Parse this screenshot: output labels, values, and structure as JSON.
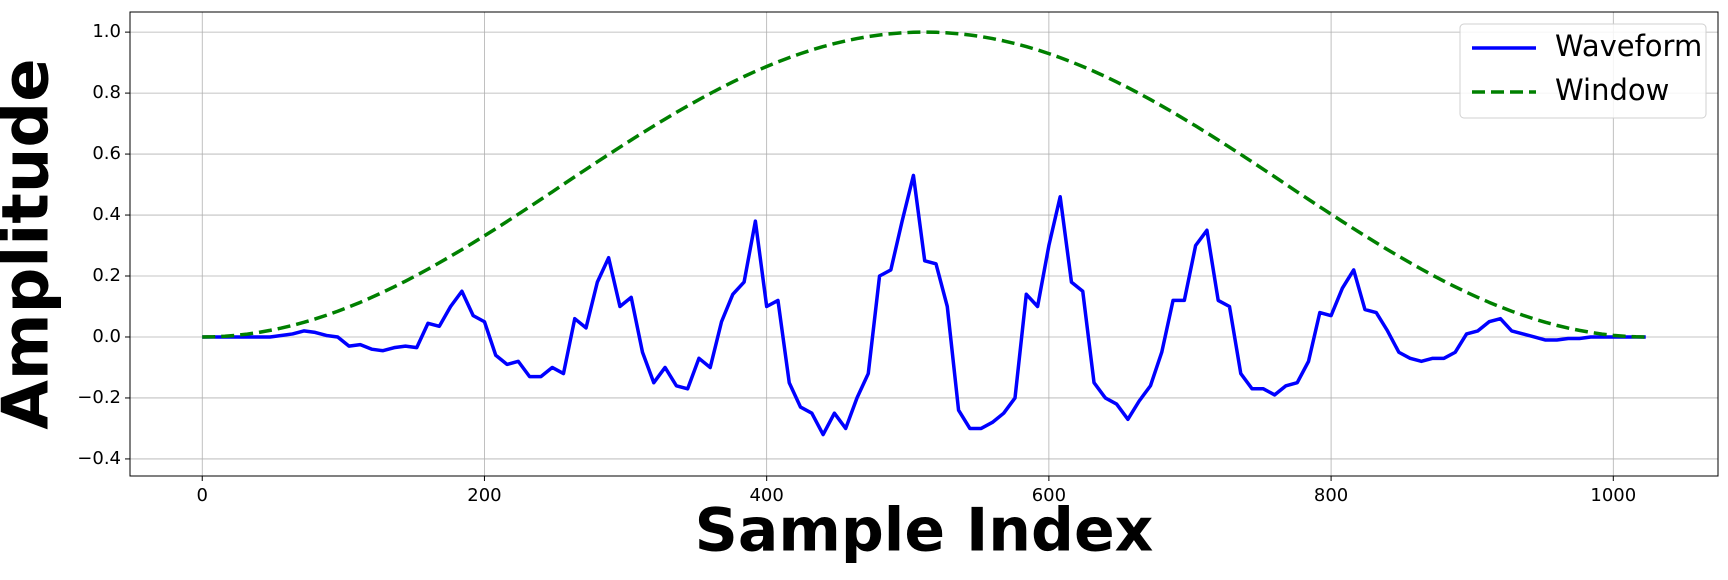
{
  "chart_data": {
    "type": "line",
    "x_label": "Sample Index",
    "y_label": "Amplitude",
    "x": [
      0,
      8,
      16,
      24,
      32,
      40,
      48,
      56,
      64,
      72,
      80,
      88,
      96,
      104,
      112,
      120,
      128,
      136,
      144,
      152,
      160,
      168,
      176,
      184,
      192,
      200,
      208,
      216,
      224,
      232,
      240,
      248,
      256,
      264,
      272,
      280,
      288,
      296,
      304,
      312,
      320,
      328,
      336,
      344,
      352,
      360,
      368,
      376,
      384,
      392,
      400,
      408,
      416,
      424,
      432,
      440,
      448,
      456,
      464,
      472,
      480,
      488,
      496,
      504,
      512,
      520,
      528,
      536,
      544,
      552,
      560,
      568,
      576,
      584,
      592,
      600,
      608,
      616,
      624,
      632,
      640,
      648,
      656,
      664,
      672,
      680,
      688,
      696,
      704,
      712,
      720,
      728,
      736,
      744,
      752,
      760,
      768,
      776,
      784,
      792,
      800,
      808,
      816,
      824,
      832,
      840,
      848,
      856,
      864,
      872,
      880,
      888,
      896,
      904,
      912,
      920,
      928,
      936,
      944,
      952,
      960,
      968,
      976,
      984,
      992,
      1000,
      1008,
      1016,
      1023
    ],
    "series": [
      {
        "name": "Waveform",
        "color": "#0000ff",
        "dash": false,
        "values": [
          0,
          0,
          0,
          0,
          0,
          0,
          0,
          0.005,
          0.01,
          0.02,
          0.015,
          0.005,
          0,
          -0.03,
          -0.025,
          -0.04,
          -0.045,
          -0.035,
          -0.03,
          -0.035,
          0.045,
          0.035,
          0.1,
          0.15,
          0.07,
          0.05,
          -0.06,
          -0.09,
          -0.08,
          -0.13,
          -0.13,
          -0.1,
          -0.12,
          0.06,
          0.03,
          0.18,
          0.26,
          0.1,
          0.13,
          -0.05,
          -0.15,
          -0.1,
          -0.16,
          -0.17,
          -0.07,
          -0.1,
          0.05,
          0.14,
          0.18,
          0.38,
          0.1,
          0.12,
          -0.15,
          -0.23,
          -0.25,
          -0.32,
          -0.25,
          -0.3,
          -0.2,
          -0.12,
          0.2,
          0.22,
          0.38,
          0.53,
          0.25,
          0.24,
          0.1,
          -0.24,
          -0.3,
          -0.3,
          -0.28,
          -0.25,
          -0.2,
          0.14,
          0.1,
          0.3,
          0.46,
          0.18,
          0.15,
          -0.15,
          -0.2,
          -0.22,
          -0.27,
          -0.21,
          -0.16,
          -0.05,
          0.12,
          0.12,
          0.3,
          0.35,
          0.12,
          0.1,
          -0.12,
          -0.17,
          -0.17,
          -0.19,
          -0.16,
          -0.15,
          -0.08,
          0.08,
          0.07,
          0.16,
          0.22,
          0.09,
          0.08,
          0.02,
          -0.05,
          -0.07,
          -0.08,
          -0.07,
          -0.07,
          -0.05,
          0.01,
          0.02,
          0.05,
          0.06,
          0.02,
          0.01,
          0,
          -0.01,
          -0.01,
          -0.005,
          -0.005,
          0,
          0,
          0,
          0,
          0,
          0
        ]
      },
      {
        "name": "Window",
        "color": "#008000",
        "dash": true,
        "values": [
          0,
          0.0006,
          0.0024,
          0.0054,
          0.0096,
          0.015,
          0.0216,
          0.0293,
          0.0381,
          0.0481,
          0.0591,
          0.0713,
          0.0844,
          0.0986,
          0.1137,
          0.1298,
          0.1467,
          0.1645,
          0.1831,
          0.2025,
          0.2226,
          0.2434,
          0.2648,
          0.2866,
          0.3091,
          0.332,
          0.3552,
          0.3789,
          0.4028,
          0.427,
          0.4514,
          0.4759,
          0.5008,
          0.5256,
          0.5501,
          0.5745,
          0.5987,
          0.6226,
          0.6462,
          0.6694,
          0.6923,
          0.7147,
          0.7366,
          0.7579,
          0.7787,
          0.7987,
          0.8181,
          0.8366,
          0.8544,
          0.8713,
          0.8872,
          0.9023,
          0.9164,
          0.9295,
          0.9416,
          0.9526,
          0.9624,
          0.9712,
          0.9789,
          0.9854,
          0.9907,
          0.9948,
          0.9977,
          0.9995,
          1.0,
          0.9995,
          0.9977,
          0.9948,
          0.9907,
          0.9854,
          0.9789,
          0.9712,
          0.9624,
          0.9526,
          0.9416,
          0.9295,
          0.9164,
          0.9023,
          0.8872,
          0.8713,
          0.8544,
          0.8366,
          0.8181,
          0.7987,
          0.7787,
          0.7579,
          0.7366,
          0.7147,
          0.6923,
          0.6694,
          0.6462,
          0.6226,
          0.5987,
          0.5745,
          0.5501,
          0.5256,
          0.5008,
          0.4759,
          0.4514,
          0.427,
          0.4028,
          0.3789,
          0.3552,
          0.332,
          0.3091,
          0.2866,
          0.2648,
          0.2434,
          0.2226,
          0.2025,
          0.1831,
          0.1645,
          0.1467,
          0.1298,
          0.1137,
          0.0986,
          0.0844,
          0.0713,
          0.0591,
          0.0481,
          0.0381,
          0.0293,
          0.0216,
          0.015,
          0.0096,
          0.0054,
          0.0024,
          0.0006,
          0
        ]
      }
    ],
    "xlim": [
      -51.2,
      1074.2
    ],
    "ylim": [
      -0.456,
      1.066
    ],
    "xticks": [
      0,
      200,
      400,
      600,
      800,
      1000
    ],
    "yticks": [
      {
        "value": -0.4,
        "label": "−0.4"
      },
      {
        "value": -0.2,
        "label": "−0.2"
      },
      {
        "value": 0,
        "label": "0.0"
      },
      0.2,
      0.4,
      0.6,
      0.8,
      {
        "value": 1,
        "label": "1.0"
      }
    ],
    "grid": true,
    "legend": "upper right"
  }
}
